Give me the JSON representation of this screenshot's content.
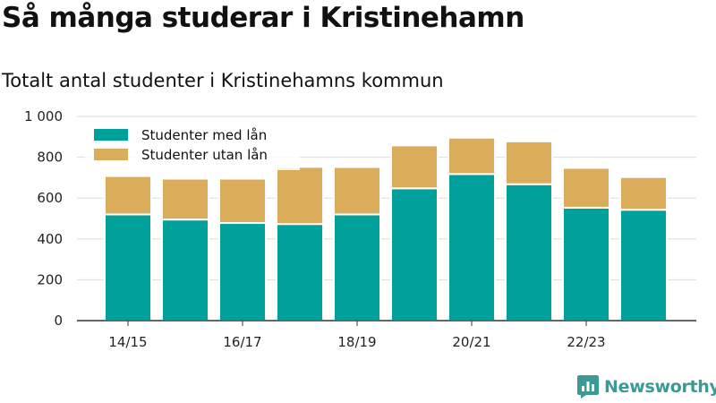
{
  "header": {
    "title": "Så många studerar i Kristinehamn",
    "subtitle": "Totalt antal studenter i Kristinehamns kommun"
  },
  "brand": {
    "name": "Newsworthy",
    "icon": "chart-bubble-icon",
    "color": "#3a9b96"
  },
  "chart_data": {
    "type": "bar",
    "stacked": true,
    "categories": [
      "14/15",
      "15/16",
      "16/17",
      "17/18",
      "18/19",
      "19/20",
      "20/21",
      "21/22",
      "22/23",
      "23/24"
    ],
    "x_tick_labels": [
      "14/15",
      "16/17",
      "18/19",
      "20/21",
      "22/23"
    ],
    "series": [
      {
        "name": "Studenter med lån",
        "color": "#00a19a",
        "values": [
          520,
          495,
          478,
          473,
          520,
          648,
          718,
          668,
          553,
          543
        ]
      },
      {
        "name": "Studenter utan lån",
        "color": "#dbad5b",
        "values": [
          188,
          200,
          217,
          280,
          232,
          210,
          178,
          210,
          195,
          160
        ]
      }
    ],
    "y_ticks": [
      "0",
      "200",
      "400",
      "600",
      "800",
      "1 000"
    ],
    "ylim": [
      0,
      1000
    ],
    "grid": true,
    "legend_position": "top-left"
  }
}
